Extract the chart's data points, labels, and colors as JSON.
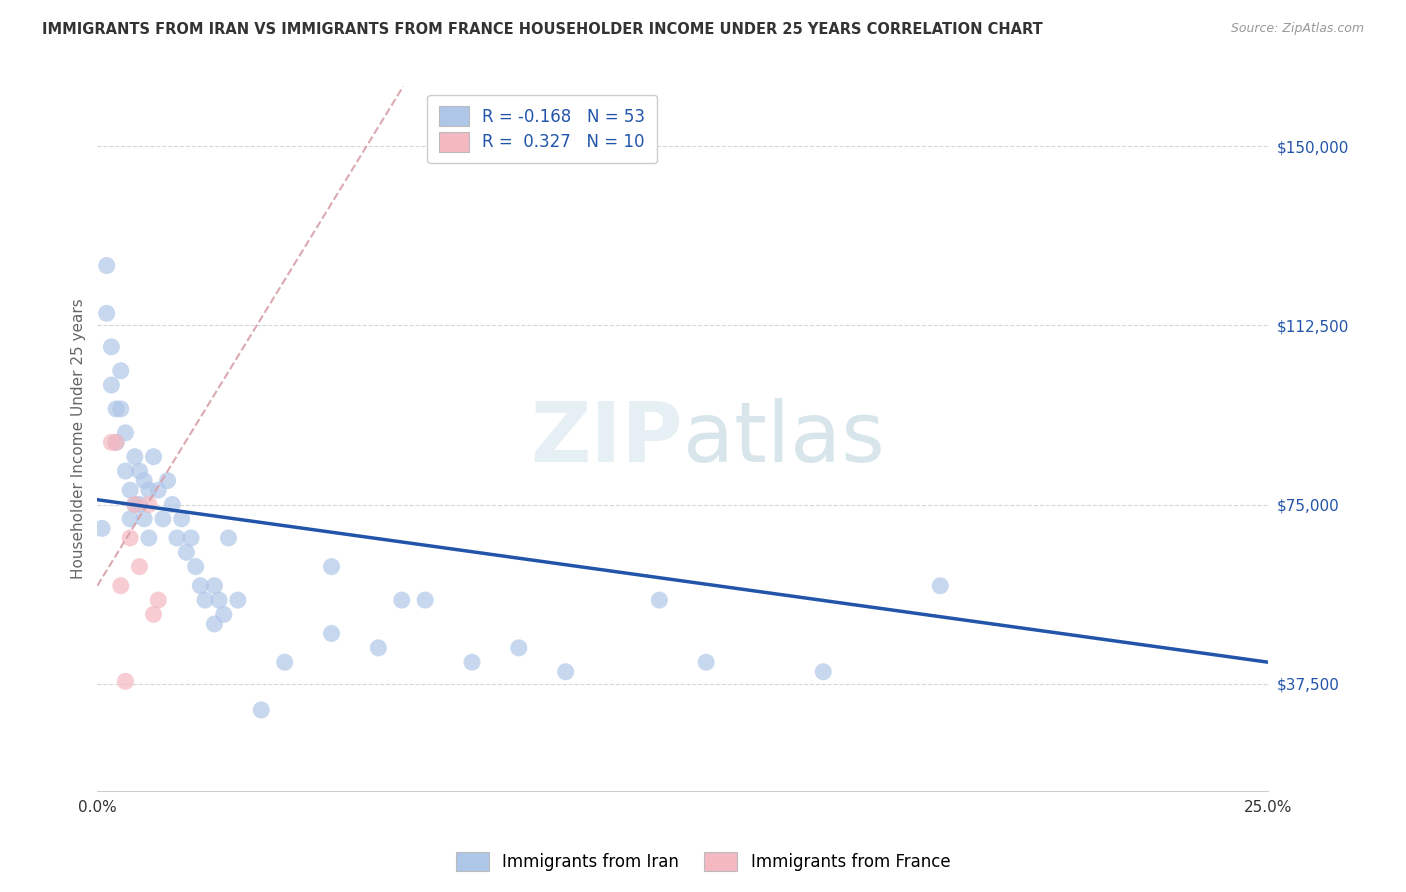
{
  "title": "IMMIGRANTS FROM IRAN VS IMMIGRANTS FROM FRANCE HOUSEHOLDER INCOME UNDER 25 YEARS CORRELATION CHART",
  "source": "Source: ZipAtlas.com",
  "ylabel": "Householder Income Under 25 years",
  "xlim": [
    0.0,
    0.25
  ],
  "ylim": [
    15000,
    162500
  ],
  "yticks": [
    37500,
    75000,
    112500,
    150000
  ],
  "ytick_labels": [
    "$37,500",
    "$75,000",
    "$112,500",
    "$150,000"
  ],
  "xticks": [
    0.0,
    0.25
  ],
  "xtick_labels": [
    "0.0%",
    "25.0%"
  ],
  "legend_iran_R": "-0.168",
  "legend_iran_N": "53",
  "legend_france_R": "0.327",
  "legend_france_N": "10",
  "iran_color": "#aec6e8",
  "france_color": "#f4b8c1",
  "iran_line_color": "#2255aa",
  "france_line_color": "#cc6677",
  "france_trend_color": "#d8a0a8",
  "background_color": "#ffffff",
  "grid_color": "#cccccc",
  "ytick_color": "#2255aa",
  "title_color": "#333333",
  "axis_label_color": "#666666",
  "iran_scatter": [
    [
      0.001,
      70000
    ],
    [
      0.002,
      125000
    ],
    [
      0.002,
      115000
    ],
    [
      0.003,
      108000
    ],
    [
      0.003,
      100000
    ],
    [
      0.004,
      95000
    ],
    [
      0.004,
      88000
    ],
    [
      0.005,
      103000
    ],
    [
      0.005,
      95000
    ],
    [
      0.006,
      90000
    ],
    [
      0.006,
      82000
    ],
    [
      0.007,
      78000
    ],
    [
      0.007,
      72000
    ],
    [
      0.008,
      85000
    ],
    [
      0.008,
      75000
    ],
    [
      0.009,
      82000
    ],
    [
      0.009,
      75000
    ],
    [
      0.01,
      80000
    ],
    [
      0.01,
      72000
    ],
    [
      0.011,
      68000
    ],
    [
      0.011,
      78000
    ],
    [
      0.012,
      85000
    ],
    [
      0.013,
      78000
    ],
    [
      0.014,
      72000
    ],
    [
      0.015,
      80000
    ],
    [
      0.016,
      75000
    ],
    [
      0.017,
      68000
    ],
    [
      0.018,
      72000
    ],
    [
      0.019,
      65000
    ],
    [
      0.02,
      68000
    ],
    [
      0.021,
      62000
    ],
    [
      0.022,
      58000
    ],
    [
      0.023,
      55000
    ],
    [
      0.025,
      58000
    ],
    [
      0.025,
      50000
    ],
    [
      0.026,
      55000
    ],
    [
      0.027,
      52000
    ],
    [
      0.028,
      68000
    ],
    [
      0.03,
      55000
    ],
    [
      0.035,
      32000
    ],
    [
      0.04,
      42000
    ],
    [
      0.05,
      62000
    ],
    [
      0.05,
      48000
    ],
    [
      0.06,
      45000
    ],
    [
      0.065,
      55000
    ],
    [
      0.07,
      55000
    ],
    [
      0.08,
      42000
    ],
    [
      0.09,
      45000
    ],
    [
      0.1,
      40000
    ],
    [
      0.12,
      55000
    ],
    [
      0.13,
      42000
    ],
    [
      0.155,
      40000
    ],
    [
      0.18,
      58000
    ]
  ],
  "france_scatter": [
    [
      0.003,
      88000
    ],
    [
      0.004,
      88000
    ],
    [
      0.005,
      58000
    ],
    [
      0.006,
      38000
    ],
    [
      0.007,
      68000
    ],
    [
      0.008,
      75000
    ],
    [
      0.009,
      62000
    ],
    [
      0.011,
      75000
    ],
    [
      0.012,
      52000
    ],
    [
      0.013,
      55000
    ]
  ],
  "iran_trendline": [
    [
      0.0,
      76000
    ],
    [
      0.25,
      42000
    ]
  ],
  "france_trendline": [
    [
      0.0,
      58000
    ],
    [
      0.015,
      82000
    ]
  ],
  "watermark_zip": "ZIP",
  "watermark_atlas": "atlas",
  "legend_iran_label": "Immigrants from Iran",
  "legend_france_label": "Immigrants from France"
}
